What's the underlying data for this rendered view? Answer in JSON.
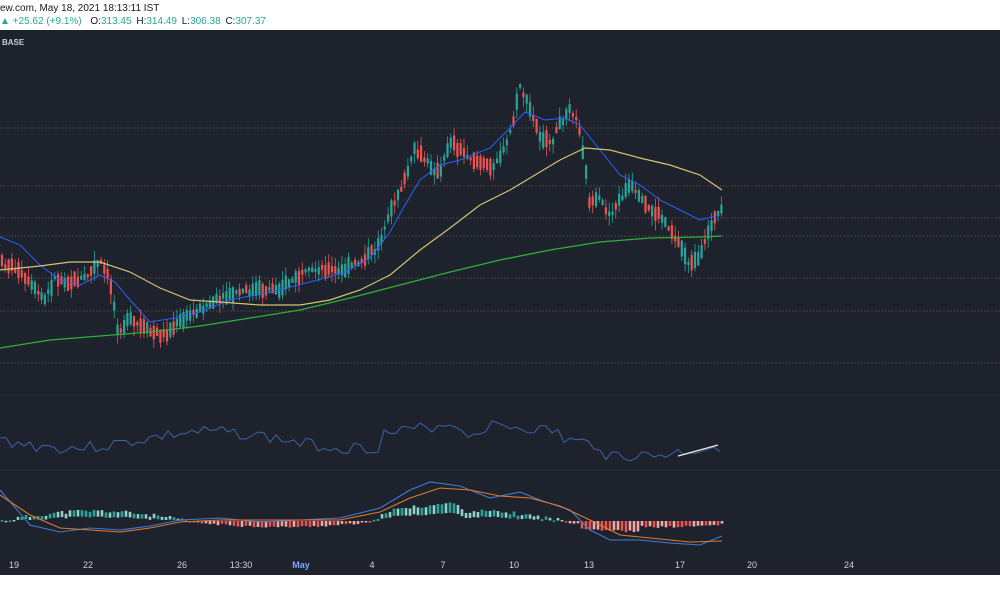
{
  "header": {
    "site_fragment": "ew.com, May 18, 2021 18:13:11 IST",
    "change": "+25.62 (+9.1%)",
    "open_label": "O:",
    "open": "313.45",
    "high_label": "H:",
    "high": "314.49",
    "low_label": "L:",
    "low": "306.38",
    "close_label": "C:",
    "close": "307.37",
    "symbol_fragment": "BASE"
  },
  "xaxis": {
    "labels": [
      "19",
      "22",
      "26",
      "13:30",
      "May",
      "4",
      "7",
      "10",
      "13",
      "17",
      "20",
      "24"
    ]
  },
  "colors": {
    "background": "#1e222d",
    "up": "#26a69a",
    "down": "#ef5350",
    "ma_fast": "#2962ff",
    "ma_mid": "#d4c46a",
    "ma_slow": "#2eaf3a",
    "rsi": "#3c63a8",
    "macd": "#3d7bd6",
    "signal": "#e07b2a",
    "level": "#c9a24a"
  },
  "chart_data": {
    "type": "candlestick",
    "price_panel": {
      "horizontal_levels": 7,
      "moving_averages": [
        "fast",
        "mid",
        "slow"
      ]
    },
    "rsi_panel": {
      "trendline": true
    },
    "macd_panel": {
      "histogram": true,
      "lines": [
        "macd",
        "signal"
      ]
    }
  }
}
